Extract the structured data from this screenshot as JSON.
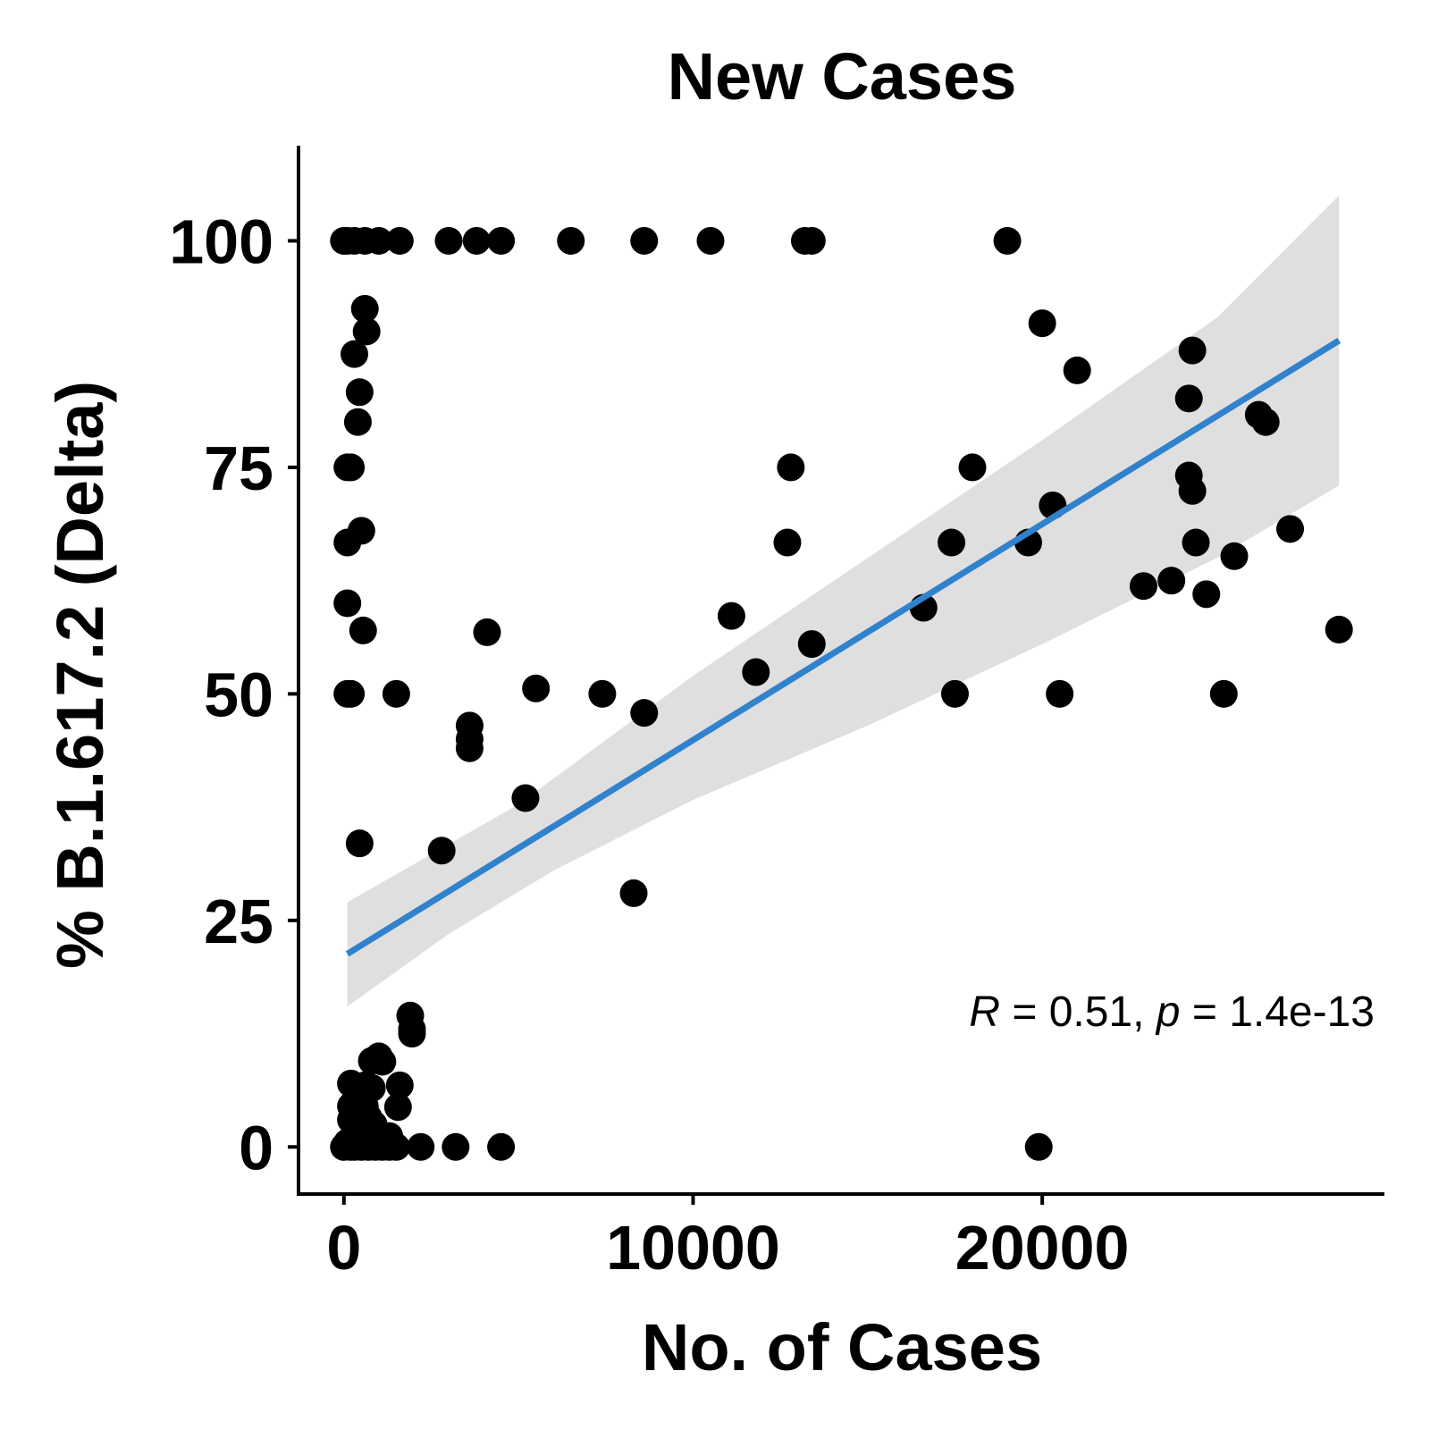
{
  "chart_data": {
    "type": "scatter",
    "title": "New Cases",
    "xlabel": "No. of Cases",
    "ylabel": "% B.1.617.2 (Delta)",
    "xlim": [
      -1300,
      29800
    ],
    "ylim": [
      -5.2,
      110.5
    ],
    "xticks": [
      0,
      10000,
      20000
    ],
    "yticks": [
      0,
      25,
      50,
      75,
      100
    ],
    "grid": false,
    "annotation": {
      "r_symbol": "R",
      "r_value": " = 0.51, ",
      "p_symbol": "p",
      "p_value": " = 1.4e-13"
    },
    "fit": {
      "line_color": "#3182cc",
      "band_color": "#d3d3d3",
      "line": [
        [
          100,
          21.3
        ],
        [
          28500,
          89.0
        ]
      ],
      "band_upper": [
        [
          100,
          27.0
        ],
        [
          5000,
          37.8
        ],
        [
          10000,
          52.0
        ],
        [
          15000,
          65.0
        ],
        [
          20000,
          78.0
        ],
        [
          25000,
          91.5
        ],
        [
          28500,
          105.0
        ]
      ],
      "band_lower": [
        [
          100,
          15.5
        ],
        [
          3000,
          23.5
        ],
        [
          6000,
          30.5
        ],
        [
          10000,
          38.3
        ],
        [
          15000,
          46.5
        ],
        [
          20000,
          55.5
        ],
        [
          25000,
          65.0
        ],
        [
          28500,
          73.0
        ]
      ]
    },
    "points": [
      [
        0,
        100
      ],
      [
        100,
        100
      ],
      [
        300,
        100
      ],
      [
        600,
        100
      ],
      [
        1000,
        100
      ],
      [
        1600,
        100
      ],
      [
        3000,
        100
      ],
      [
        3800,
        100
      ],
      [
        4500,
        100
      ],
      [
        6500,
        100
      ],
      [
        8600,
        100
      ],
      [
        10500,
        100
      ],
      [
        13200,
        100
      ],
      [
        13400,
        100
      ],
      [
        19000,
        100
      ],
      [
        600,
        92.5
      ],
      [
        650,
        90
      ],
      [
        300,
        87.5
      ],
      [
        450,
        83.3
      ],
      [
        400,
        80
      ],
      [
        100,
        75
      ],
      [
        200,
        75
      ],
      [
        500,
        68
      ],
      [
        100,
        66.7
      ],
      [
        100,
        60
      ],
      [
        550,
        57
      ],
      [
        100,
        50
      ],
      [
        200,
        50
      ],
      [
        1500,
        50
      ],
      [
        4100,
        56.8
      ],
      [
        5500,
        50.6
      ],
      [
        7400,
        50
      ],
      [
        3600,
        46.5
      ],
      [
        3600,
        45
      ],
      [
        3600,
        44
      ],
      [
        5200,
        38.5
      ],
      [
        450,
        33.5
      ],
      [
        8300,
        28
      ],
      [
        1900,
        14.5
      ],
      [
        1950,
        13
      ],
      [
        1950,
        12.5
      ],
      [
        800,
        9.5
      ],
      [
        1000,
        10
      ],
      [
        1100,
        9.4
      ],
      [
        200,
        7
      ],
      [
        600,
        6.8
      ],
      [
        800,
        6.5
      ],
      [
        1600,
        6.8
      ],
      [
        300,
        5
      ],
      [
        200,
        4.5
      ],
      [
        600,
        4.5
      ],
      [
        1550,
        4.4
      ],
      [
        700,
        3.3
      ],
      [
        850,
        2.5
      ],
      [
        200,
        3
      ],
      [
        400,
        1.5
      ],
      [
        1100,
        1.3
      ],
      [
        1300,
        1.2
      ],
      [
        100,
        0.5
      ],
      [
        0,
        0
      ],
      [
        200,
        0
      ],
      [
        300,
        0
      ],
      [
        500,
        0
      ],
      [
        700,
        0
      ],
      [
        900,
        0
      ],
      [
        1100,
        0
      ],
      [
        1300,
        0
      ],
      [
        1500,
        0
      ],
      [
        2200,
        0
      ],
      [
        3200,
        0
      ],
      [
        4500,
        0
      ],
      [
        19900,
        0
      ],
      [
        11100,
        58.6
      ],
      [
        12800,
        75
      ],
      [
        12700,
        66.7
      ],
      [
        11800,
        52.4
      ],
      [
        13400,
        55.5
      ],
      [
        8600,
        47.9
      ],
      [
        2800,
        32.7
      ],
      [
        16600,
        59.5
      ],
      [
        17400,
        66.7
      ],
      [
        17500,
        50
      ],
      [
        18000,
        75
      ],
      [
        19600,
        66.7
      ],
      [
        20000,
        90.9
      ],
      [
        20300,
        70.8
      ],
      [
        20500,
        50
      ],
      [
        21000,
        85.7
      ],
      [
        22900,
        61.9
      ],
      [
        23700,
        62.5
      ],
      [
        24200,
        82.6
      ],
      [
        24200,
        74.1
      ],
      [
        24300,
        72.4
      ],
      [
        24300,
        87.9
      ],
      [
        24400,
        66.7
      ],
      [
        24700,
        61
      ],
      [
        25200,
        50
      ],
      [
        25500,
        65.2
      ],
      [
        26200,
        80.8
      ],
      [
        26400,
        80
      ],
      [
        27100,
        68.2
      ],
      [
        28500,
        57.1
      ]
    ]
  }
}
